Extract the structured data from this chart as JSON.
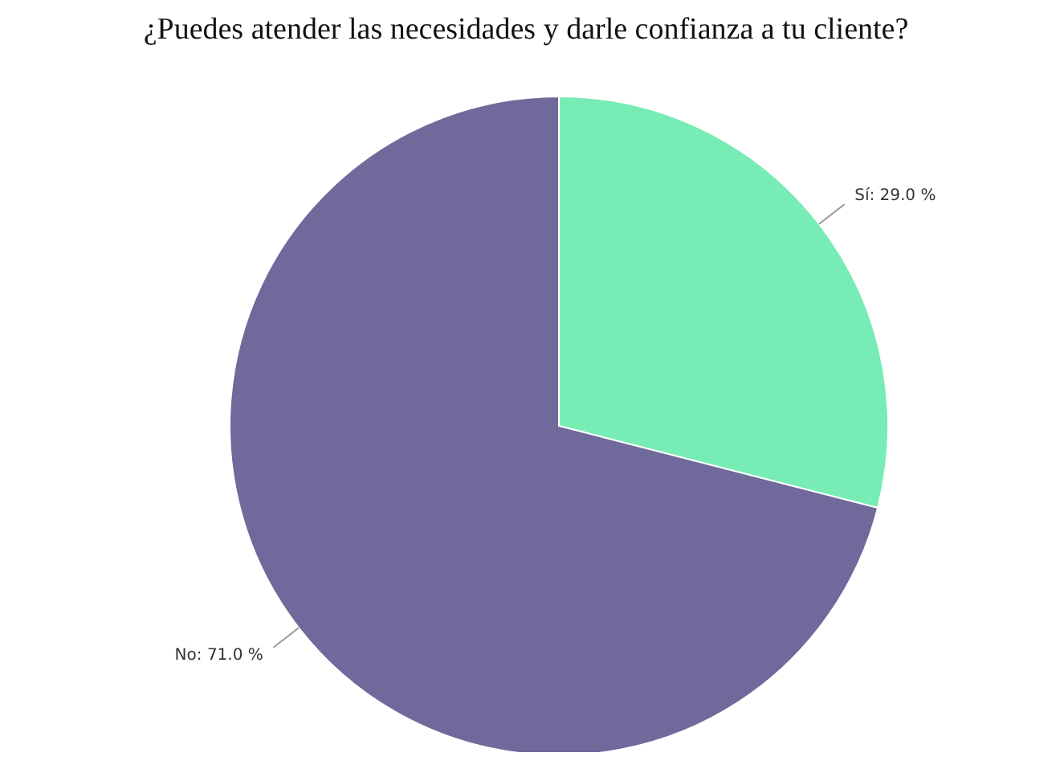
{
  "chart_data": {
    "type": "pie",
    "title": "¿Puedes atender las necesidades y darle confianza a tu cliente?",
    "categories": [
      "Sí",
      "No"
    ],
    "values": [
      29.0,
      71.0
    ],
    "colors": [
      "#77ecb4",
      "#6f6a9b"
    ],
    "value_labels": [
      "29.0 %",
      "71.0 %"
    ]
  }
}
